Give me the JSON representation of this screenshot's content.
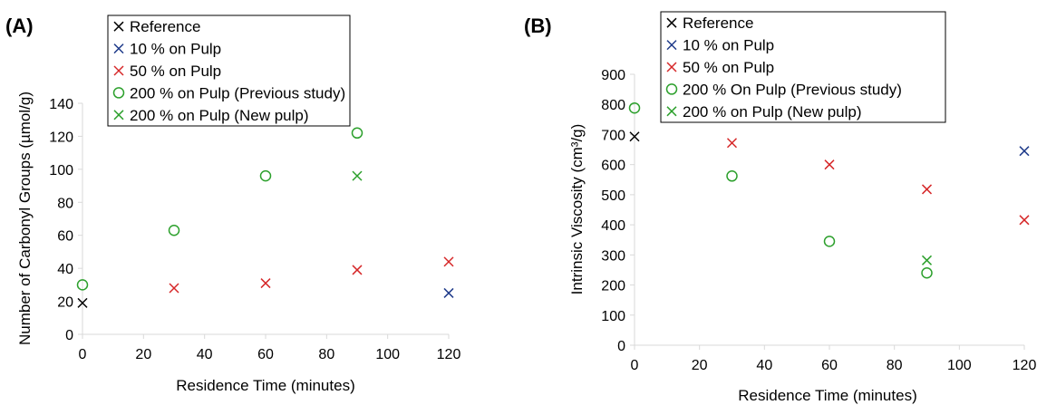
{
  "panels": {
    "a_label": "(A)",
    "b_label": "(B)"
  },
  "chart_data": [
    {
      "type": "scatter",
      "panel": "(A)",
      "title": "",
      "xlabel": "Residence Time (minutes)",
      "ylabel": "Number of Carbonyl Groups (µmol/g)",
      "xlim": [
        0,
        120
      ],
      "ylim": [
        0,
        140
      ],
      "xticks": [
        0,
        20,
        40,
        60,
        80,
        100,
        120
      ],
      "yticks": [
        0,
        20,
        40,
        60,
        80,
        100,
        120,
        140
      ],
      "grid": false,
      "legend_position": "top",
      "series": [
        {
          "name": "Reference",
          "marker": "x",
          "color": "#000000",
          "points": [
            [
              0,
              19
            ]
          ]
        },
        {
          "name": "10 % on Pulp",
          "marker": "x",
          "color": "#1f3b8a",
          "points": [
            [
              120,
              25
            ]
          ]
        },
        {
          "name": "50 % on Pulp",
          "marker": "x",
          "color": "#d62728",
          "points": [
            [
              30,
              28
            ],
            [
              60,
              31
            ],
            [
              90,
              39
            ],
            [
              120,
              44
            ]
          ]
        },
        {
          "name": "200 % on Pulp (Previous study)",
          "marker": "circle",
          "color": "#2ca02c",
          "points": [
            [
              0,
              30
            ],
            [
              30,
              63
            ],
            [
              60,
              96
            ],
            [
              90,
              122
            ]
          ]
        },
        {
          "name": "200 % on Pulp (New pulp)",
          "marker": "x",
          "color": "#2ca02c",
          "points": [
            [
              90,
              96
            ]
          ]
        }
      ]
    },
    {
      "type": "scatter",
      "panel": "(B)",
      "title": "",
      "xlabel": "Residence Time (minutes)",
      "ylabel": "Intrinsic Viscosity (cm³/g)",
      "xlim": [
        0,
        120
      ],
      "ylim": [
        0,
        900
      ],
      "xticks": [
        0,
        20,
        40,
        60,
        80,
        100,
        120
      ],
      "yticks": [
        0,
        100,
        200,
        300,
        400,
        500,
        600,
        700,
        800,
        900
      ],
      "grid": false,
      "legend_position": "top",
      "series": [
        {
          "name": "Reference",
          "marker": "x",
          "color": "#000000",
          "points": [
            [
              0,
              693
            ]
          ]
        },
        {
          "name": "10 % on Pulp",
          "marker": "x",
          "color": "#1f3b8a",
          "points": [
            [
              120,
              645
            ]
          ]
        },
        {
          "name": "50 % on Pulp",
          "marker": "x",
          "color": "#d62728",
          "points": [
            [
              30,
              672
            ],
            [
              60,
              600
            ],
            [
              90,
              518
            ],
            [
              120,
              416
            ]
          ]
        },
        {
          "name": "200 % On Pulp (Previous study)",
          "marker": "circle",
          "color": "#2ca02c",
          "points": [
            [
              0,
              788
            ],
            [
              30,
              562
            ],
            [
              60,
              345
            ],
            [
              90,
              240
            ]
          ]
        },
        {
          "name": "200 % on Pulp (New pulp)",
          "marker": "x",
          "color": "#2ca02c",
          "points": [
            [
              90,
              282
            ]
          ]
        }
      ]
    }
  ]
}
